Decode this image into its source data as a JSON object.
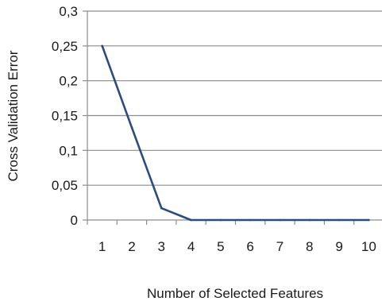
{
  "chart_data": {
    "type": "line",
    "title": "",
    "xlabel": "Number of Selected Features",
    "ylabel": "Cross Validation Error",
    "categories": [
      "1",
      "2",
      "3",
      "4",
      "5",
      "6",
      "7",
      "8",
      "9",
      "10"
    ],
    "series": [
      {
        "values": [
          0.25,
          0.133,
          0.017,
          0,
          0,
          0,
          0,
          0,
          0,
          0
        ]
      }
    ],
    "ylim": [
      0,
      0.3
    ],
    "yticks": [
      0,
      0.05,
      0.1,
      0.15,
      0.2,
      0.25,
      0.3
    ],
    "ytick_labels": [
      "0",
      "0,05",
      "0,1",
      "0,15",
      "0,2",
      "0,25",
      "0,3"
    ],
    "grid": "horizontal",
    "legend": "none",
    "colors": {
      "line": "#2a4c7e",
      "grid": "#8c8c8c",
      "axis": "#8c8c8c"
    }
  }
}
